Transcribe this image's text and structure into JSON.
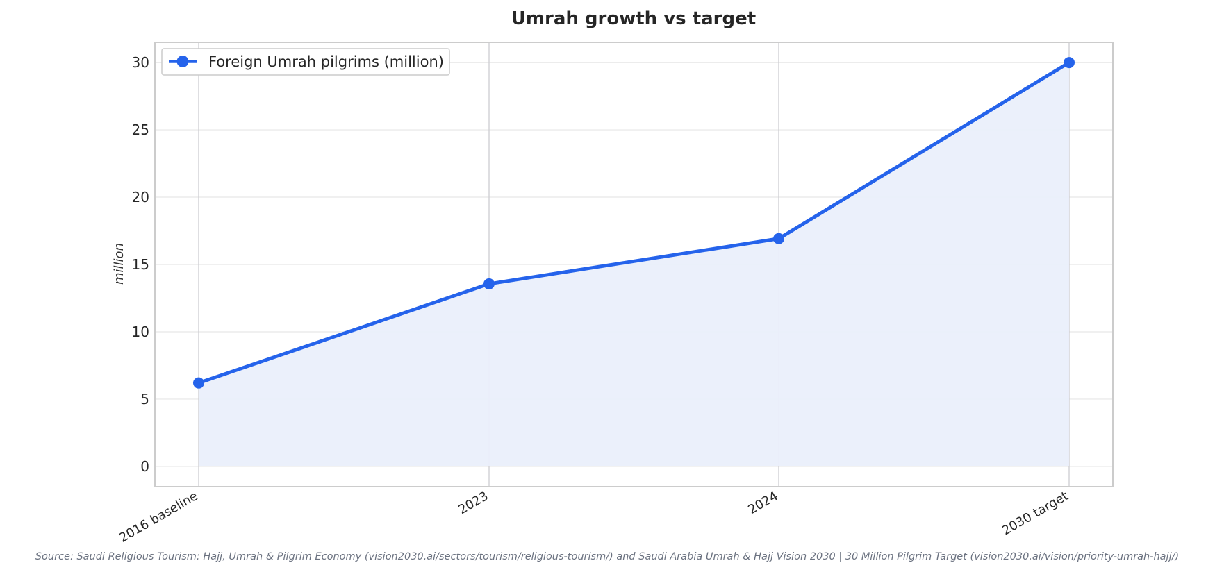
{
  "chart_data": {
    "type": "area",
    "title": "Umrah growth vs target",
    "categories": [
      "2016 baseline",
      "2023",
      "2024",
      "2030 target"
    ],
    "series": [
      {
        "name": "Foreign Umrah pilgrims (million)",
        "values": [
          6.2,
          13.56,
          16.92,
          30
        ]
      }
    ],
    "xlabel": "",
    "ylabel": "million",
    "ylim": [
      -1.5,
      31.5
    ],
    "yticks": [
      0,
      5,
      10,
      15,
      20,
      25,
      30
    ],
    "grid": true,
    "legend_position": "top-left",
    "source": "Source: Saudi Religious Tourism: Hajj, Umrah & Pilgrim Economy (vision2030.ai/sectors/tourism/religious-tourism/) and Saudi Arabia Umrah & Hajj Vision 2030 | 30 Million Pilgrim Target (vision2030.ai/vision/priority-umrah-hajj/)",
    "colors": {
      "line": "#2563eb",
      "fill": "#eaeffb",
      "grid": "#e6e6e6",
      "frame": "#cccccc",
      "text": "#262626",
      "source_text": "#6b7280"
    }
  }
}
